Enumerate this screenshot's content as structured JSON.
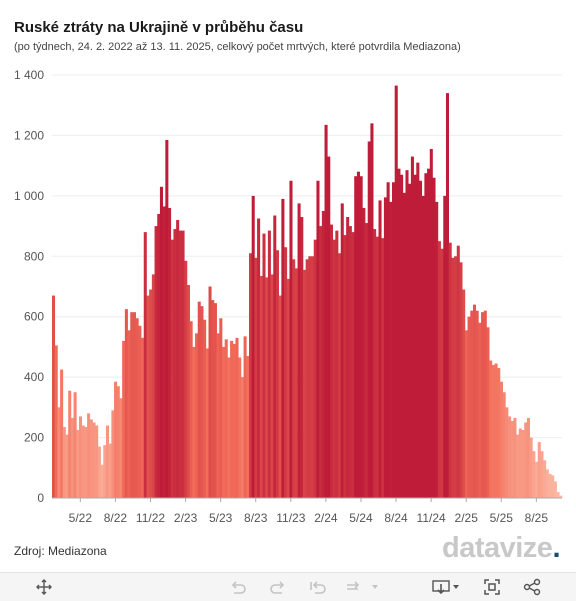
{
  "title": "Ruské ztráty na Ukrajině v průběhu času",
  "subtitle": "(po týdnech, 24. 2. 2022 až 13. 11. 2025, celkový počet mrtvých, které potvrdila Mediazona)",
  "source": "Zdroj: Mediazona",
  "brand": {
    "main": "datavize",
    "accent": "."
  },
  "toolbar": {
    "icons": [
      "move-icon",
      "undo-icon",
      "redo-icon",
      "revert-icon",
      "refresh-icon",
      "download-icon",
      "fullscreen-icon",
      "share-icon"
    ]
  },
  "colors": {
    "low": "#fdbea8",
    "mid": "#f26b58",
    "high": "#be1c38",
    "grid": "#eeeeee",
    "axis": "#555555"
  },
  "chart_data": {
    "type": "bar",
    "ylim": [
      0,
      1400
    ],
    "yticks": [
      0,
      200,
      400,
      600,
      800,
      1000,
      1200,
      1400
    ],
    "ytick_labels": [
      "0",
      "200",
      "400",
      "600",
      "800",
      "1 000",
      "1 200",
      "1 400"
    ],
    "xtick_labels": [
      "5/22",
      "8/22",
      "11/22",
      "2/23",
      "5/23",
      "8/23",
      "11/23",
      "2/24",
      "5/24",
      "8/24",
      "11/24",
      "2/25",
      "5/25",
      "8/25"
    ],
    "xtick_positions": [
      10,
      23,
      36,
      49,
      62,
      75,
      88,
      101,
      114,
      127,
      140,
      153,
      166,
      179
    ],
    "grid": true,
    "values": [
      670,
      505,
      300,
      425,
      235,
      210,
      355,
      265,
      350,
      225,
      270,
      240,
      235,
      280,
      260,
      250,
      240,
      170,
      110,
      175,
      240,
      180,
      290,
      385,
      370,
      330,
      520,
      625,
      555,
      615,
      615,
      595,
      570,
      530,
      880,
      670,
      690,
      740,
      900,
      940,
      1030,
      965,
      1185,
      960,
      855,
      890,
      920,
      885,
      885,
      785,
      705,
      585,
      500,
      545,
      650,
      635,
      590,
      495,
      700,
      655,
      645,
      545,
      595,
      500,
      525,
      465,
      520,
      510,
      530,
      465,
      400,
      535,
      470,
      810,
      1000,
      795,
      925,
      735,
      875,
      730,
      885,
      740,
      935,
      820,
      670,
      990,
      830,
      725,
      1050,
      790,
      760,
      975,
      930,
      755,
      790,
      800,
      800,
      855,
      1050,
      900,
      950,
      1235,
      1130,
      905,
      855,
      885,
      810,
      975,
      870,
      930,
      900,
      880,
      1065,
      1080,
      1065,
      960,
      910,
      1180,
      1240,
      890,
      865,
      985,
      860,
      995,
      1045,
      980,
      1045,
      1365,
      1090,
      1070,
      1010,
      1085,
      1040,
      1130,
      1070,
      1110,
      1050,
      1000,
      1075,
      1090,
      1155,
      1060,
      980,
      850,
      825,
      1000,
      1340,
      845,
      795,
      800,
      835,
      780,
      690,
      555,
      600,
      620,
      640,
      620,
      580,
      615,
      620,
      565,
      455,
      440,
      445,
      430,
      385,
      350,
      300,
      270,
      255,
      265,
      210,
      230,
      225,
      250,
      265,
      200,
      155,
      120,
      185,
      155,
      125,
      95,
      80,
      75,
      55,
      20,
      8
    ]
  }
}
